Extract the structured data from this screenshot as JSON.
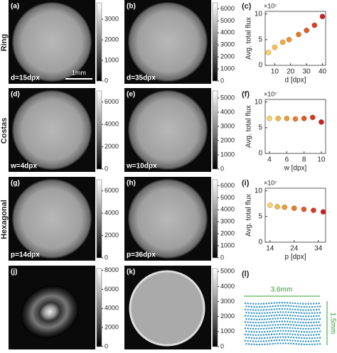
{
  "row_labels": [
    "Ring",
    "Costas",
    "Hexagonal"
  ],
  "scale_bar": "1mm",
  "image_panels": [
    {
      "label": "(a)",
      "caption": "d=15dpx",
      "clim": [
        0,
        3800
      ],
      "colorbar_ticks": [
        0,
        1000,
        2000,
        3000
      ]
    },
    {
      "label": "(b)",
      "caption": "d=35dpx",
      "clim": [
        0,
        6500
      ],
      "colorbar_ticks": [
        0,
        1000,
        2000,
        3000,
        4000,
        5000,
        6000
      ]
    },
    {
      "label": "(d)",
      "caption": "w=4dpx",
      "clim": [
        0,
        7000
      ],
      "colorbar_ticks": [
        0,
        2000,
        4000,
        6000
      ]
    },
    {
      "label": "(e)",
      "caption": "w=10dpx",
      "clim": [
        0,
        5500
      ],
      "colorbar_ticks": [
        0,
        1000,
        2000,
        3000,
        4000,
        5000
      ]
    },
    {
      "label": "(g)",
      "caption": "p=14dpx",
      "clim": [
        0,
        7000
      ],
      "colorbar_ticks": [
        0,
        2000,
        4000,
        6000
      ]
    },
    {
      "label": "(h)",
      "caption": "p=36dpx",
      "clim": [
        0,
        6500
      ],
      "colorbar_ticks": [
        0,
        1000,
        2000,
        3000,
        4000,
        5000,
        6000
      ]
    },
    {
      "label": "(j)",
      "caption": "",
      "clim": [
        0,
        8200
      ],
      "colorbar_ticks": [
        0,
        2000,
        4000,
        6000,
        8000
      ]
    },
    {
      "label": "(k)",
      "caption": "",
      "clim": [
        0,
        5200
      ],
      "colorbar_ticks": [
        0,
        1000,
        2000,
        3000,
        4000,
        5000
      ]
    }
  ],
  "chart_data": [
    {
      "type": "scatter",
      "label": "(c)",
      "xlabel": "d [dpx]",
      "ylabel": "Avg. total flux",
      "y_multiplier": "×10⁷",
      "x": [
        6,
        10,
        15,
        19,
        25,
        30,
        35,
        40
      ],
      "values": [
        2.5,
        3.5,
        4.5,
        5,
        6,
        6.8,
        7.8,
        9.5
      ],
      "colors": [
        "#f5d66a",
        "#f2c24e",
        "#eeac3e",
        "#e99333",
        "#e3792c",
        "#dc5c28",
        "#d23e26",
        "#c42226"
      ],
      "xlim": [
        4,
        42
      ],
      "ylim": [
        0,
        10.5
      ],
      "xticks": [
        10,
        20,
        30,
        40
      ],
      "yticks": [
        0,
        5,
        10
      ]
    },
    {
      "type": "scatter",
      "label": "(f)",
      "xlabel": "w [dpx]",
      "ylabel": "Avg. total flux",
      "y_multiplier": "×10⁷",
      "x": [
        4,
        5,
        6,
        7,
        8,
        9,
        10
      ],
      "values": [
        6.8,
        6.8,
        6.8,
        6.7,
        6.8,
        7.0,
        6.1
      ],
      "colors": [
        "#f5d66a",
        "#f0ba48",
        "#eb9d38",
        "#e47d2d",
        "#dc5c28",
        "#d03a26",
        "#c42226"
      ],
      "xlim": [
        3.5,
        10.5
      ],
      "ylim": [
        0,
        10.5
      ],
      "xticks": [
        4,
        6,
        8,
        10
      ],
      "yticks": [
        0,
        5,
        10
      ]
    },
    {
      "type": "scatter",
      "label": "(i)",
      "xlabel": "p [dpx]",
      "ylabel": "Avg. total flux",
      "y_multiplier": "×10⁷",
      "x": [
        14,
        17,
        20,
        24,
        28,
        32,
        36
      ],
      "values": [
        7.2,
        6.9,
        6.8,
        6.6,
        6.4,
        6.2,
        5.9
      ],
      "colors": [
        "#f5d66a",
        "#f0ba48",
        "#eb9d38",
        "#e47d2d",
        "#dc5c28",
        "#d03a26",
        "#c42226"
      ],
      "xlim": [
        12,
        37
      ],
      "ylim": [
        0,
        10.5
      ],
      "xticks": [
        14,
        24,
        34
      ],
      "yticks": [
        0,
        5,
        10
      ]
    }
  ],
  "layout_panel": {
    "label": "(l)",
    "width_label": "3.6mm",
    "height_label": "1.5mm"
  }
}
